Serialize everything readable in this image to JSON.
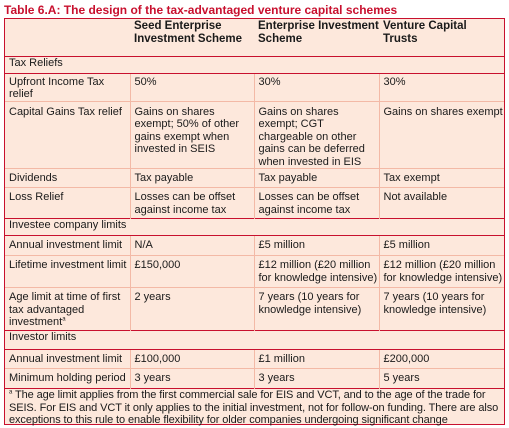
{
  "title": "Table 6.A: The design of the tax-advantaged venture capital schemes",
  "columns": [
    "",
    "Seed Enterprise Investment Scheme",
    "Enterprise Investment Scheme",
    "Venture Capital Trusts"
  ],
  "sections": [
    {
      "heading": "Tax Reliefs",
      "rows": [
        {
          "label": "Upfront Income Tax relief",
          "seis": "50%",
          "eis": "30%",
          "vct": "30%"
        },
        {
          "label": "Capital Gains Tax relief",
          "seis": "Gains on shares exempt; 50% of other gains exempt when invested in SEIS",
          "eis": "Gains on shares exempt; CGT chargeable on other gains can be deferred when invested in EIS",
          "vct": "Gains on shares exempt"
        },
        {
          "label": "Dividends",
          "seis": "Tax payable",
          "eis": "Tax payable",
          "vct": "Tax exempt"
        },
        {
          "label": "Loss Relief",
          "seis": "Losses can be offset against income tax",
          "eis": "Losses can be offset against income tax",
          "vct": "Not available"
        }
      ]
    },
    {
      "heading": "Investee company limits",
      "rows": [
        {
          "label": "Annual investment limit",
          "seis": "N/A",
          "eis": "£5 million",
          "vct": "£5 million"
        },
        {
          "label": "Lifetime investment limit",
          "seis": "£150,000",
          "eis": "£12 million (£20 million for knowledge intensive)",
          "vct": "£12 million (£20 million for knowledge intensive)"
        },
        {
          "label": "Age limit at time of first tax advantaged investment",
          "label_sup": "a",
          "seis": "2 years",
          "eis": "7 years (10 years for knowledge intensive)",
          "vct": "7 years (10 years for knowledge intensive)"
        }
      ]
    },
    {
      "heading": "Investor limits",
      "rows": [
        {
          "label": "Annual investment limit",
          "seis": "£100,000",
          "eis": "£1 million",
          "vct": "£200,000"
        },
        {
          "label": "Minimum holding period",
          "seis": "3 years",
          "eis": "3 years",
          "vct": "5 years"
        }
      ]
    }
  ],
  "footnote": {
    "marker": "a",
    "text": "The age limit applies from the first commercial sale for EIS and VCT, and to the age of the trade for SEIS. For EIS and VCT it only applies to the initial investment, not for follow-on funding. There are also exceptions to this rule to enable flexibility for older companies undergoing significant change"
  }
}
